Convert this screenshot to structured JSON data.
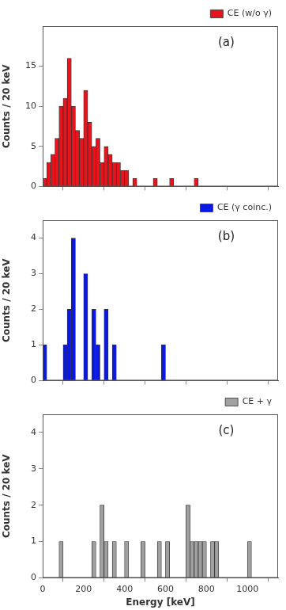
{
  "chart_data": [
    {
      "type": "bar",
      "annotation": "(a)",
      "y_label": "Counts / 20 keV",
      "bins": [
        0,
        20,
        40,
        60,
        80,
        100,
        120,
        140,
        160,
        180,
        200,
        220,
        240,
        260,
        280,
        300,
        320,
        340,
        360,
        380,
        400,
        420,
        440,
        460,
        480,
        500,
        520,
        540,
        560,
        580,
        600,
        620,
        640,
        660,
        680,
        700,
        720,
        740,
        760,
        780,
        800,
        820,
        840,
        860,
        880,
        900,
        920,
        940,
        960,
        980,
        1000,
        1020,
        1040,
        1060
      ],
      "series": [
        {
          "name": "CE (w/o γ)",
          "color": "#e8141c",
          "values": [
            1,
            3,
            4,
            6,
            10,
            11,
            16,
            10,
            7,
            6,
            12,
            8,
            5,
            6,
            3,
            5,
            4,
            3,
            3,
            2,
            2,
            0,
            1,
            0,
            0,
            0,
            0,
            1,
            0,
            0,
            0,
            1,
            0,
            0,
            0,
            0,
            0,
            1,
            0,
            0,
            0,
            0,
            0,
            0,
            0,
            0,
            0,
            0,
            0,
            0,
            0,
            0,
            0
          ]
        }
      ],
      "xlim": [
        0,
        1150
      ],
      "xticks": [
        0,
        200,
        400,
        600,
        800,
        1000
      ],
      "ylim": [
        0,
        20
      ],
      "yticks": [
        0,
        5,
        10,
        15
      ],
      "grid": false,
      "legend": "top-right",
      "tick_labels": "y"
    },
    {
      "type": "bar",
      "annotation": "(b)",
      "y_label": "Counts / 20 keV",
      "bins": [
        0,
        20,
        40,
        60,
        80,
        100,
        120,
        140,
        160,
        180,
        200,
        220,
        240,
        260,
        280,
        300,
        320,
        340,
        360,
        380,
        400,
        420,
        440,
        460,
        480,
        500,
        520,
        540,
        560,
        580,
        600,
        620,
        640,
        660,
        680,
        700,
        720,
        740,
        760,
        780,
        800,
        820,
        840,
        860,
        880,
        900,
        920,
        940,
        960,
        980,
        1000,
        1020,
        1040,
        1060
      ],
      "series": [
        {
          "name": "CE (γ coinc.)",
          "color": "#0a18e6",
          "values": [
            1,
            0,
            0,
            0,
            0,
            1,
            2,
            4,
            0,
            0,
            3,
            0,
            2,
            1,
            0,
            2,
            0,
            1,
            0,
            0,
            0,
            0,
            0,
            0,
            0,
            0,
            0,
            0,
            0,
            1,
            0,
            0,
            0,
            0,
            0,
            0,
            0,
            0,
            0,
            0,
            0,
            0,
            0,
            0,
            0,
            0,
            0,
            0,
            0,
            0,
            0,
            0,
            0
          ]
        }
      ],
      "xlim": [
        0,
        1150
      ],
      "xticks": [
        0,
        200,
        400,
        600,
        800,
        1000
      ],
      "ylim": [
        0,
        4.5
      ],
      "yticks": [
        0,
        1,
        2,
        3,
        4
      ],
      "grid": false,
      "legend": "top-right",
      "tick_labels": "y"
    },
    {
      "type": "bar",
      "annotation": "(c)",
      "y_label": "Counts / 20 keV",
      "x_label": "Energy [keV]",
      "bins": [
        0,
        20,
        40,
        60,
        80,
        100,
        120,
        140,
        160,
        180,
        200,
        220,
        240,
        260,
        280,
        300,
        320,
        340,
        360,
        380,
        400,
        420,
        440,
        460,
        480,
        500,
        520,
        540,
        560,
        580,
        600,
        620,
        640,
        660,
        680,
        700,
        720,
        740,
        760,
        780,
        800,
        820,
        840,
        860,
        880,
        900,
        920,
        940,
        960,
        980,
        1000,
        1020,
        1040,
        1060
      ],
      "series": [
        {
          "name": "CE + γ",
          "color": "#a0a0a0",
          "values": [
            0,
            0,
            0,
            0,
            1,
            0,
            0,
            0,
            0,
            0,
            0,
            0,
            1,
            0,
            2,
            1,
            0,
            1,
            0,
            0,
            1,
            0,
            0,
            0,
            1,
            0,
            0,
            0,
            1,
            0,
            1,
            0,
            0,
            0,
            0,
            2,
            1,
            1,
            1,
            1,
            0,
            1,
            1,
            0,
            0,
            0,
            0,
            0,
            0,
            0,
            1,
            0,
            0
          ]
        }
      ],
      "xlim": [
        0,
        1150
      ],
      "xticks": [
        0,
        200,
        400,
        600,
        800,
        1000
      ],
      "ylim": [
        0,
        4.5
      ],
      "yticks": [
        0,
        1,
        2,
        3,
        4
      ],
      "grid": false,
      "legend": "top-right"
    }
  ]
}
